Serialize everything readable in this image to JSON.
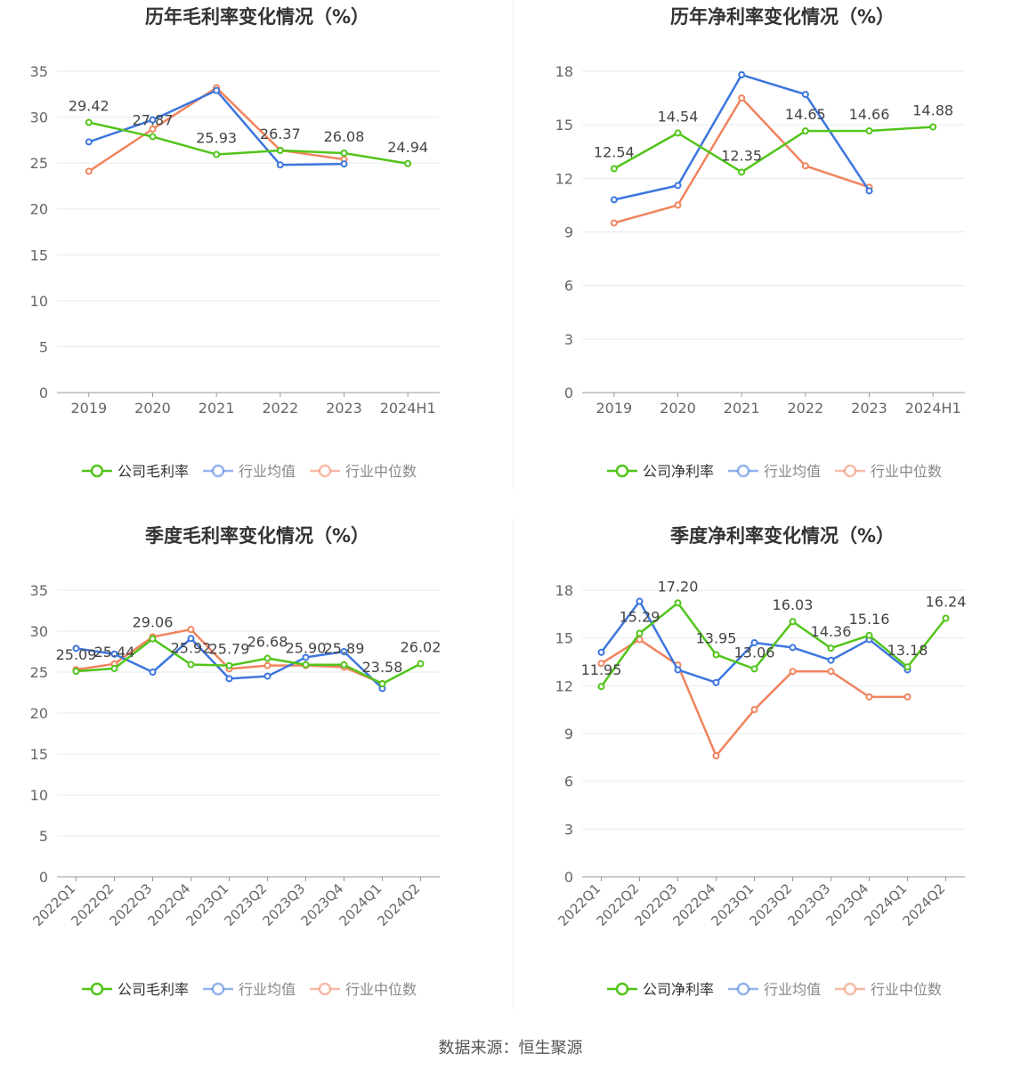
{
  "chart_data": [
    {
      "id": "annual-gross",
      "type": "line",
      "title": "历年毛利率变化情况（%）",
      "categories": [
        "2019",
        "2020",
        "2021",
        "2022",
        "2023",
        "2024H1"
      ],
      "ylim": [
        0,
        35
      ],
      "yticks": [
        0,
        5,
        10,
        15,
        20,
        25,
        30,
        35
      ],
      "grid": true,
      "legend_position": "bottom",
      "series": [
        {
          "name": "公司毛利率",
          "color": "#52c41a",
          "values": [
            29.42,
            27.87,
            25.93,
            26.37,
            26.08,
            24.94
          ],
          "labels": [
            "29.42",
            "27.87",
            "25.93",
            "26.37",
            "26.08",
            "24.94"
          ]
        },
        {
          "name": "行业均值",
          "color": "#3d76dd",
          "values": [
            27.3,
            29.7,
            32.9,
            24.8,
            24.9,
            null
          ]
        },
        {
          "name": "行业中位数",
          "color": "#f0845e",
          "values": [
            24.1,
            28.7,
            33.2,
            26.4,
            25.4,
            null
          ]
        }
      ]
    },
    {
      "id": "annual-net",
      "type": "line",
      "title": "历年净利率变化情况（%）",
      "categories": [
        "2019",
        "2020",
        "2021",
        "2022",
        "2023",
        "2024H1"
      ],
      "ylim": [
        0,
        18
      ],
      "yticks": [
        0,
        3,
        6,
        9,
        12,
        15,
        18
      ],
      "grid": true,
      "legend_position": "bottom",
      "series": [
        {
          "name": "公司净利率",
          "color": "#52c41a",
          "values": [
            12.54,
            14.54,
            12.35,
            14.65,
            14.66,
            14.88
          ],
          "labels": [
            "12.54",
            "14.54",
            "12.35",
            "14.65",
            "14.66",
            "14.88"
          ]
        },
        {
          "name": "行业均值",
          "color": "#3d76dd",
          "values": [
            10.8,
            11.6,
            17.8,
            16.7,
            11.3,
            null
          ]
        },
        {
          "name": "行业中位数",
          "color": "#f0845e",
          "values": [
            9.5,
            10.5,
            16.5,
            12.7,
            11.5,
            null
          ]
        }
      ]
    },
    {
      "id": "quarterly-gross",
      "type": "line",
      "title": "季度毛利率变化情况（%）",
      "categories": [
        "2022Q1",
        "2022Q2",
        "2022Q3",
        "2022Q4",
        "2023Q1",
        "2023Q2",
        "2023Q3",
        "2023Q4",
        "2024Q1",
        "2024Q2"
      ],
      "ylim": [
        0,
        35
      ],
      "yticks": [
        0,
        5,
        10,
        15,
        20,
        25,
        30,
        35
      ],
      "grid": true,
      "legend_position": "bottom",
      "series": [
        {
          "name": "公司毛利率",
          "color": "#52c41a",
          "values": [
            25.09,
            25.44,
            29.06,
            25.92,
            25.79,
            26.68,
            25.9,
            25.89,
            23.58,
            26.02
          ],
          "labels": [
            "25.09",
            "25.44",
            "29.06",
            "25.92",
            "25.79",
            "26.68",
            "25.90",
            "25.89",
            "23.58",
            "26.02"
          ]
        },
        {
          "name": "行业均值",
          "color": "#3d76dd",
          "values": [
            27.9,
            27.2,
            25.0,
            29.1,
            24.2,
            24.5,
            26.8,
            27.5,
            23.0,
            null
          ]
        },
        {
          "name": "行业中位数",
          "color": "#f0845e",
          "values": [
            25.3,
            26.0,
            29.3,
            30.2,
            25.4,
            25.8,
            25.8,
            25.6,
            23.6,
            null
          ]
        }
      ]
    },
    {
      "id": "quarterly-net",
      "type": "line",
      "title": "季度净利率变化情况（%）",
      "categories": [
        "2022Q1",
        "2022Q2",
        "2022Q3",
        "2022Q4",
        "2023Q1",
        "2023Q2",
        "2023Q3",
        "2023Q4",
        "2024Q1",
        "2024Q2"
      ],
      "ylim": [
        0,
        18
      ],
      "yticks": [
        0,
        3,
        6,
        9,
        12,
        15,
        18
      ],
      "grid": true,
      "legend_position": "bottom",
      "series": [
        {
          "name": "公司净利率",
          "color": "#52c41a",
          "values": [
            11.95,
            15.29,
            17.2,
            13.95,
            13.06,
            16.03,
            14.36,
            15.16,
            13.18,
            16.24
          ],
          "labels": [
            "11.95",
            "15.29",
            "17.20",
            "13.95",
            "13.06",
            "16.03",
            "14.36",
            "15.16",
            "13.18",
            "16.24"
          ]
        },
        {
          "name": "行业均值",
          "color": "#3d76dd",
          "values": [
            14.1,
            17.3,
            13.0,
            12.2,
            14.7,
            14.4,
            13.6,
            14.9,
            13.0,
            null
          ]
        },
        {
          "name": "行业中位数",
          "color": "#f0845e",
          "values": [
            13.4,
            14.9,
            13.3,
            7.6,
            10.5,
            12.9,
            12.9,
            11.3,
            11.3,
            null
          ]
        }
      ]
    }
  ],
  "source": "数据来源：恒生聚源"
}
